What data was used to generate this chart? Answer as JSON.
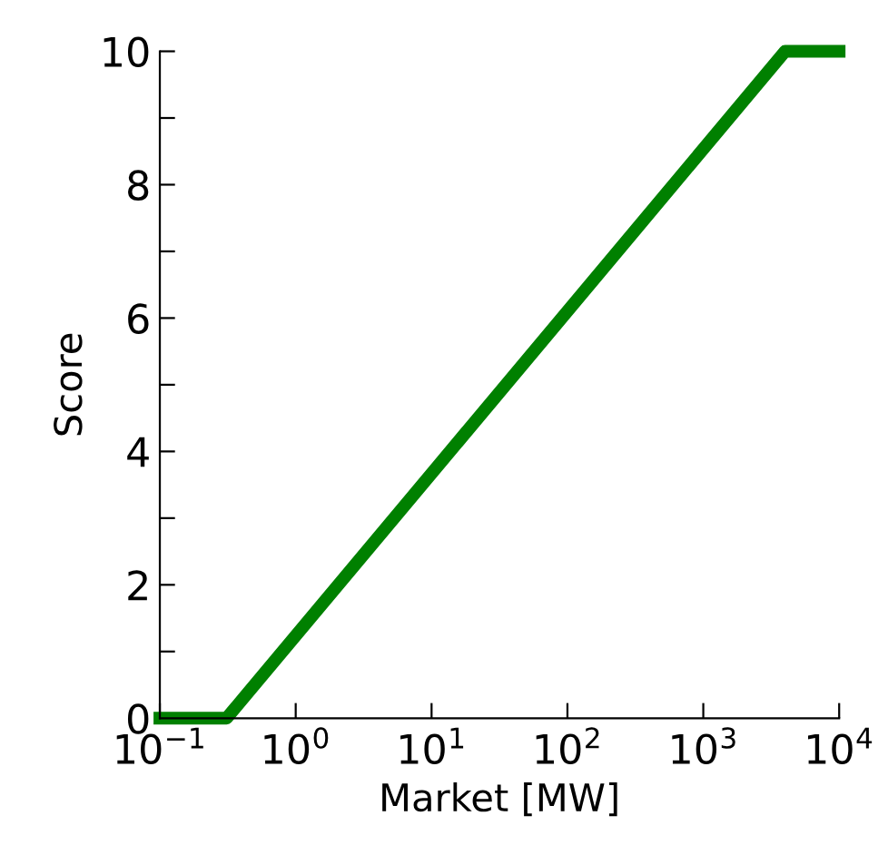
{
  "chart_data": {
    "type": "line",
    "xlabel": "Market [MW]",
    "ylabel": "Score",
    "log": "x",
    "x": [
      0.1,
      0.31,
      4000,
      10000
    ],
    "series": [
      {
        "color": "#008000",
        "values": [
          0,
          0,
          10,
          10
        ]
      }
    ],
    "xlim": [
      0.1,
      10000
    ],
    "xticks": [
      {
        "value": 0.1,
        "label": "10$^{−1}$"
      },
      {
        "value": 1,
        "label": "10$^{0}$"
      },
      {
        "value": 10,
        "label": "10$^{1}$"
      },
      {
        "value": 100,
        "label": "10$^{2}$"
      },
      {
        "value": 1000,
        "label": "10$^{3}$"
      },
      {
        "value": 10000,
        "label": "10$^{4}$"
      }
    ],
    "ylim": [
      0,
      10
    ],
    "yticks": [
      0,
      {
        "value": 1,
        "label": null
      },
      2,
      {
        "value": 3,
        "label": null
      },
      4,
      {
        "value": 5,
        "label": null
      },
      6,
      {
        "value": 7,
        "label": null
      },
      8,
      {
        "value": 9,
        "label": null
      },
      10
    ],
    "grid": false,
    "line_style": "solid",
    "marker": "none"
  }
}
